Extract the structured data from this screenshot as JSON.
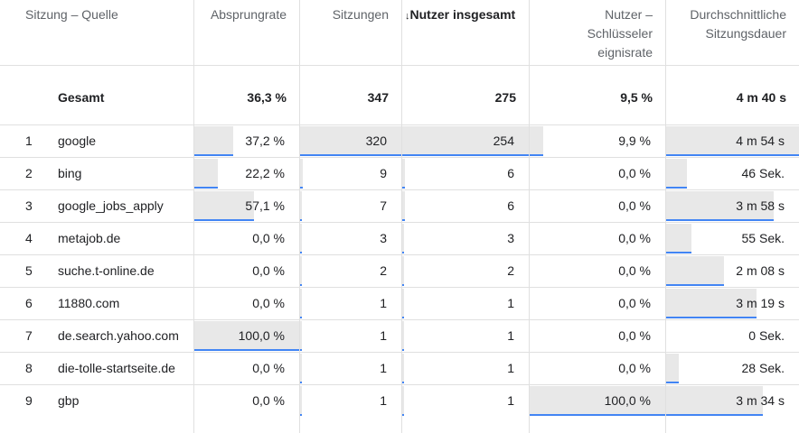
{
  "table": {
    "headers": [
      "Sitzung – Quelle",
      "Absprungrate",
      "Sitzungen",
      "Nutzer insgesamt",
      "Nutzer – Schlüsselereignisrate",
      "Durchschnittliche Sitzungsdauer"
    ],
    "total": {
      "label": "Gesamt",
      "cells": [
        "36,3 %",
        "347",
        "275",
        "9,5 %",
        "4 m 40 s"
      ]
    },
    "rows": [
      {
        "rank": "1",
        "source": "google",
        "cells": [
          "37,2 %",
          "320",
          "254",
          "9,9 %",
          "4 m 54 s"
        ]
      },
      {
        "rank": "2",
        "source": "bing",
        "cells": [
          "22,2 %",
          "9",
          "6",
          "0,0 %",
          "46 Sek."
        ]
      },
      {
        "rank": "3",
        "source": "google_jobs_apply",
        "cells": [
          "57,1 %",
          "7",
          "6",
          "0,0 %",
          "3 m 58 s"
        ]
      },
      {
        "rank": "4",
        "source": "metajob.de",
        "cells": [
          "0,0 %",
          "3",
          "3",
          "0,0 %",
          "55 Sek."
        ]
      },
      {
        "rank": "5",
        "source": "suche.t-online.de",
        "cells": [
          "0,0 %",
          "2",
          "2",
          "0,0 %",
          "2 m 08 s"
        ]
      },
      {
        "rank": "6",
        "source": "11880.com",
        "cells": [
          "0,0 %",
          "1",
          "1",
          "0,0 %",
          "3 m 19 s"
        ]
      },
      {
        "rank": "7",
        "source": "de.search.yahoo.com",
        "cells": [
          "100,0 %",
          "1",
          "1",
          "0,0 %",
          "0 Sek."
        ]
      },
      {
        "rank": "8",
        "source": "die-tolle-startseite.de",
        "cells": [
          "0,0 %",
          "1",
          "1",
          "0,0 %",
          "28 Sek."
        ]
      },
      {
        "rank": "9",
        "source": "gbp",
        "cells": [
          "0,0 %",
          "1",
          "1",
          "100,0 %",
          "3 m 34 s"
        ]
      }
    ]
  }
}
